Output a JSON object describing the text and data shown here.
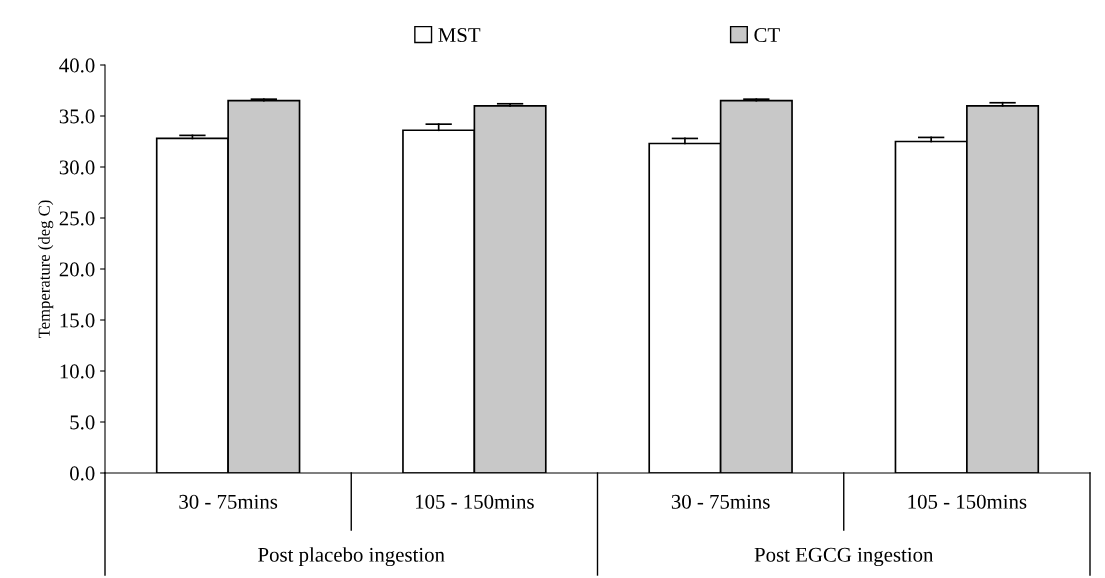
{
  "chart_data": {
    "type": "bar",
    "ylabel": "Temperature (deg C)",
    "categories": [
      "30 - 75mins",
      "105 - 150mins",
      "30 - 75mins",
      "105 - 150mins"
    ],
    "series": [
      {
        "name": "MST",
        "color": "#ffffff",
        "values": [
          32.8,
          33.6,
          32.3,
          32.5
        ],
        "errors": [
          [
            32.8,
            33.1
          ],
          [
            33.6,
            34.2
          ],
          [
            32.3,
            32.8
          ],
          [
            32.5,
            32.9
          ]
        ]
      },
      {
        "name": "CT",
        "color": "#c8c8c8",
        "values": [
          36.5,
          36.0,
          36.5,
          36.0
        ],
        "errors": [
          [
            36.5,
            36.65
          ],
          [
            36.0,
            36.2
          ],
          [
            36.5,
            36.65
          ],
          [
            36.0,
            36.3
          ]
        ]
      }
    ],
    "annotations": [
      "Post placebo ingestion",
      "Post EGCG ingestion"
    ],
    "ylim": [
      0,
      40
    ],
    "yticks": [
      {
        "value": 0,
        "label": "0.0"
      },
      {
        "value": 5,
        "label": "5.0"
      },
      {
        "value": 10,
        "label": "10.0"
      },
      {
        "value": 15,
        "label": "15.0"
      },
      {
        "value": 20,
        "label": "20.0"
      },
      {
        "value": 25,
        "label": "25.0"
      },
      {
        "value": 30,
        "label": "30.0"
      },
      {
        "value": 35,
        "label": "35.0"
      },
      {
        "value": 40,
        "label": "40.0"
      }
    ],
    "legend": "top",
    "grid": false
  }
}
